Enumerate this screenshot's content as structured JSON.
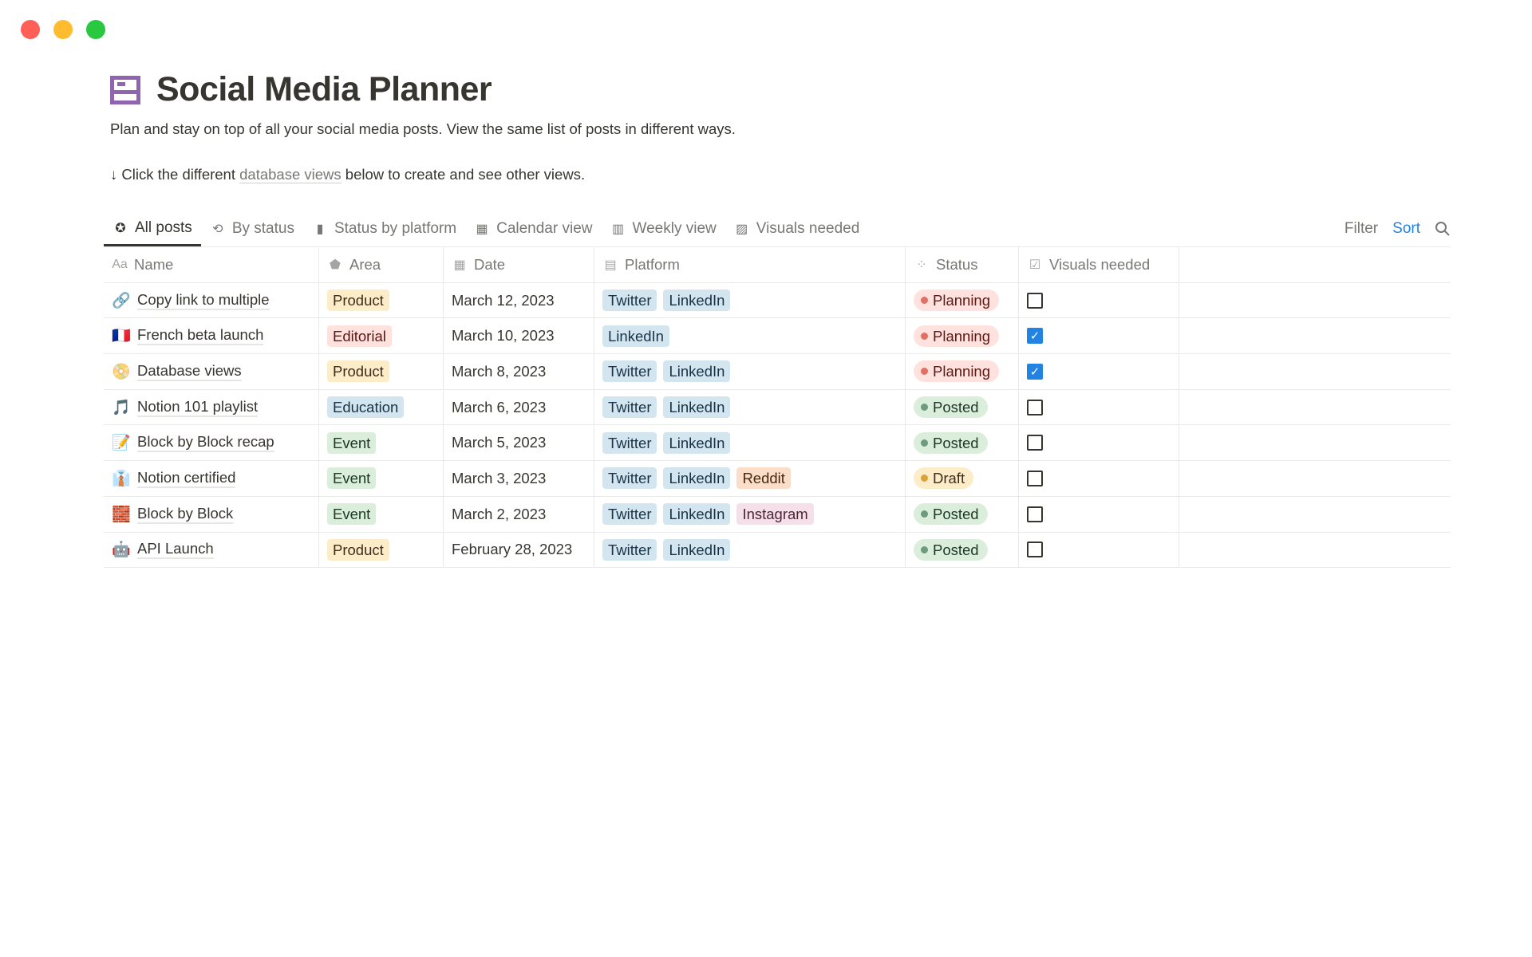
{
  "window": {
    "controls": [
      {
        "name": "close",
        "color": "#ff5f57"
      },
      {
        "name": "minimize",
        "color": "#febc2e"
      },
      {
        "name": "zoom",
        "color": "#28c840"
      }
    ]
  },
  "page": {
    "icon": "table-icon",
    "title": "Social Media Planner",
    "description": "Plan and stay on top of all your social media posts. View the same list of posts in different ways.",
    "hint_arrow": "↓",
    "hint_before": "Click the different",
    "hint_link": "database views",
    "hint_after": "below to create and see other views."
  },
  "tabs": [
    {
      "icon": "star-icon",
      "glyph": "✪",
      "label": "All posts",
      "active": true
    },
    {
      "icon": "board-icon",
      "glyph": "⟲",
      "label": "By status"
    },
    {
      "icon": "phone-icon",
      "glyph": "▮",
      "label": "Status by platform"
    },
    {
      "icon": "calendar-icon",
      "glyph": "▦",
      "label": "Calendar view"
    },
    {
      "icon": "weekly-calendar-icon",
      "glyph": "▥",
      "label": "Weekly view"
    },
    {
      "icon": "image-icon",
      "glyph": "▨",
      "label": "Visuals needed"
    }
  ],
  "actions": {
    "filter": "Filter",
    "sort": "Sort",
    "search_icon": "search-icon"
  },
  "columns": [
    {
      "icon": "Aa",
      "label": "Name"
    },
    {
      "icon": "⬟",
      "label": "Area"
    },
    {
      "icon": "▦",
      "label": "Date"
    },
    {
      "icon": "▤",
      "label": "Platform"
    },
    {
      "icon": "⁘",
      "label": "Status"
    },
    {
      "icon": "☑",
      "label": "Visuals needed"
    }
  ],
  "colors": {
    "Product": [
      "#fdecc8",
      "#402c1b"
    ],
    "Editorial": [
      "#ffe2dd",
      "#5d1715"
    ],
    "Education": [
      "#d3e5ef",
      "#183347"
    ],
    "Event": [
      "#dbeddb",
      "#1c3829"
    ],
    "Twitter": [
      "#d3e5ef",
      "#183347"
    ],
    "LinkedIn": [
      "#d3e5ef",
      "#183347"
    ],
    "Reddit": [
      "#fadec9",
      "#49290e"
    ],
    "Instagram": [
      "#f5e0e9",
      "#4c2337"
    ],
    "Planning": [
      "#ffe2dd",
      "#5d1715",
      "#e16f64"
    ],
    "Posted": [
      "#dbeddb",
      "#1c3829",
      "#6c9b7d"
    ],
    "Draft": [
      "#fdecc8",
      "#402c1b",
      "#d9a33b"
    ]
  },
  "rows": [
    {
      "emoji": "🔗",
      "name": "Copy link to multiple",
      "area": "Product",
      "date": "March 12, 2023",
      "platforms": [
        "Twitter",
        "LinkedIn"
      ],
      "status": "Planning",
      "visuals": false
    },
    {
      "emoji": "🇫🇷",
      "name": "French beta launch",
      "area": "Editorial",
      "date": "March 10, 2023",
      "platforms": [
        "LinkedIn"
      ],
      "status": "Planning",
      "visuals": true
    },
    {
      "emoji": "📀",
      "name": "Database views",
      "area": "Product",
      "date": "March 8, 2023",
      "platforms": [
        "Twitter",
        "LinkedIn"
      ],
      "status": "Planning",
      "visuals": true
    },
    {
      "emoji": "🎵",
      "name": "Notion 101 playlist",
      "area": "Education",
      "date": "March 6, 2023",
      "platforms": [
        "Twitter",
        "LinkedIn"
      ],
      "status": "Posted",
      "visuals": false
    },
    {
      "emoji": "📝",
      "name": "Block by Block recap",
      "area": "Event",
      "date": "March 5, 2023",
      "platforms": [
        "Twitter",
        "LinkedIn"
      ],
      "status": "Posted",
      "visuals": false
    },
    {
      "emoji": "👔",
      "name": "Notion certified",
      "area": "Event",
      "date": "March 3, 2023",
      "platforms": [
        "Twitter",
        "LinkedIn",
        "Reddit"
      ],
      "status": "Draft",
      "visuals": false
    },
    {
      "emoji": "🧱",
      "name": "Block by Block",
      "area": "Event",
      "date": "March 2, 2023",
      "platforms": [
        "Twitter",
        "LinkedIn",
        "Instagram"
      ],
      "status": "Posted",
      "visuals": false
    },
    {
      "emoji": "🤖",
      "name": "API Launch",
      "area": "Product",
      "date": "February 28, 2023",
      "platforms": [
        "Twitter",
        "LinkedIn"
      ],
      "status": "Posted",
      "visuals": false
    }
  ]
}
